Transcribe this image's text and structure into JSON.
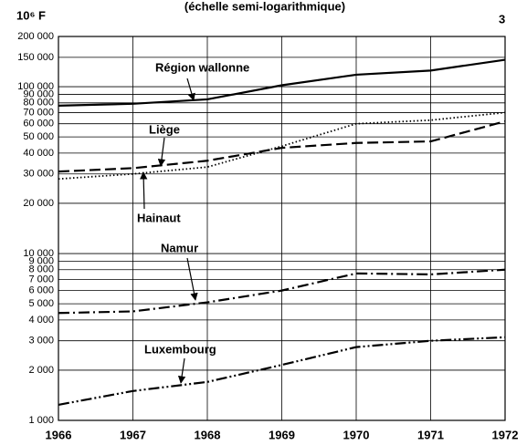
{
  "chart_data": {
    "type": "line",
    "title": "(échelle semi-logarithmique)",
    "y_label": "10⁶ F",
    "page_number": "3",
    "x": [
      1966,
      1967,
      1968,
      1969,
      1970,
      1971,
      1972
    ],
    "xlim": [
      1966,
      1972
    ],
    "xticks": [
      1966,
      1967,
      1968,
      1969,
      1970,
      1971,
      1972
    ],
    "ylim": [
      1000,
      200000
    ],
    "log_y": true,
    "grid": true,
    "yticks": [
      {
        "value": 1000,
        "label": "1 000"
      },
      {
        "value": 2000,
        "label": "2 000"
      },
      {
        "value": 3000,
        "label": "3 000"
      },
      {
        "value": 4000,
        "label": "4 000"
      },
      {
        "value": 5000,
        "label": "5 000"
      },
      {
        "value": 6000,
        "label": "6 000"
      },
      {
        "value": 7000,
        "label": "7 000"
      },
      {
        "value": 8000,
        "label": "8 000"
      },
      {
        "value": 9000,
        "label": "9 000"
      },
      {
        "value": 10000,
        "label": "10 000"
      },
      {
        "value": 20000,
        "label": "20 000"
      },
      {
        "value": 30000,
        "label": "30 000"
      },
      {
        "value": 40000,
        "label": "40 000"
      },
      {
        "value": 50000,
        "label": "50 000"
      },
      {
        "value": 60000,
        "label": "60 000"
      },
      {
        "value": 70000,
        "label": "70 000"
      },
      {
        "value": 80000,
        "label": "80 000"
      },
      {
        "value": 90000,
        "label": "90 000"
      },
      {
        "value": 100000,
        "label": "100 000"
      },
      {
        "value": 150000,
        "label": "150 000"
      },
      {
        "value": 200000,
        "label": "200 000"
      }
    ],
    "series": [
      {
        "name": "Région wallonne",
        "color": "#000000",
        "style": "solid",
        "values": [
          77000,
          79000,
          84000,
          102000,
          118000,
          125000,
          145000
        ]
      },
      {
        "name": "Liège",
        "color": "#000000",
        "style": "dotted",
        "values": [
          28000,
          30000,
          33000,
          44000,
          60000,
          63000,
          70000
        ]
      },
      {
        "name": "Hainaut",
        "color": "#000000",
        "style": "dashed",
        "values": [
          31000,
          32500,
          36000,
          43000,
          46000,
          47000,
          62000
        ]
      },
      {
        "name": "Namur",
        "color": "#000000",
        "style": "dash-dot",
        "values": [
          4400,
          4500,
          5100,
          6000,
          7600,
          7500,
          8000
        ]
      },
      {
        "name": "Luxembourg",
        "color": "#000000",
        "style": "dash-dot-dot",
        "values": [
          1240,
          1500,
          1700,
          2150,
          2750,
          3000,
          3150
        ]
      }
    ]
  }
}
